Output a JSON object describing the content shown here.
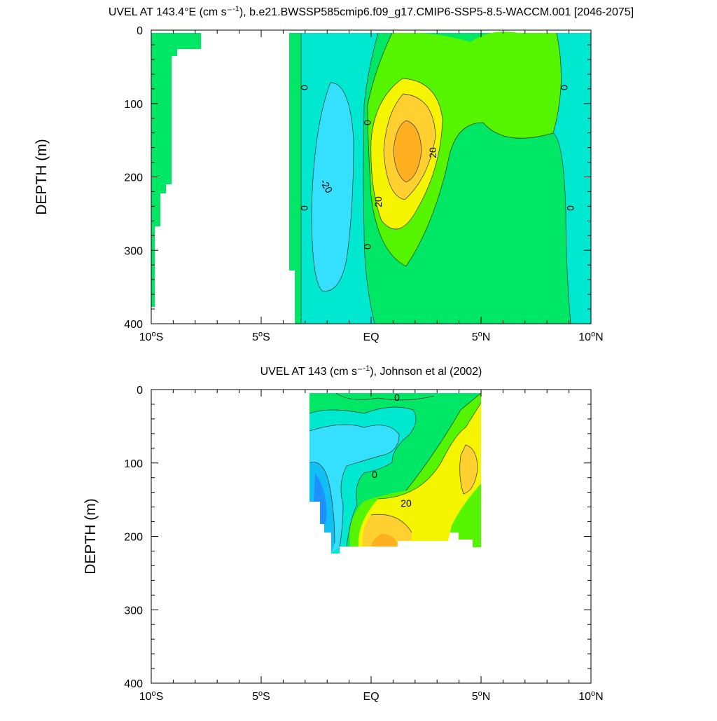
{
  "chart_data": [
    {
      "type": "contour",
      "title": "UVEL AT 143.4°E (cm s⁻¹), b.e21.BWSSP585cmip6.f09_g17.CMIP6-SSP5-8.5-WACCM.001 [2046-2075]",
      "ylabel": "DEPTH (m)",
      "xlabel": "",
      "xlim": [
        -10,
        10
      ],
      "ylim": [
        400,
        0
      ],
      "y_inverted": true,
      "x_ticks": [
        -10,
        -5,
        0,
        5,
        10
      ],
      "x_tick_labels": [
        "10°S",
        "5°S",
        "EQ",
        "5°N",
        "10°N"
      ],
      "y_ticks": [
        0,
        100,
        200,
        300,
        400
      ],
      "y_tick_labels": [
        "0",
        "100",
        "200",
        "300",
        "400"
      ],
      "contour_interval": 10,
      "contour_labels": [
        "0",
        "0",
        "0",
        "0",
        "0",
        "0",
        "-20",
        "20",
        "20"
      ],
      "levels": [
        {
          "lower": 0,
          "upper": 10,
          "color": "#00e665"
        },
        {
          "lower": -10,
          "upper": 0,
          "color": "#00e8d0"
        },
        {
          "lower": -20,
          "upper": -10,
          "color": "#35e0ff"
        },
        {
          "lower": 10,
          "upper": 20,
          "color": "#55f500"
        },
        {
          "lower": 20,
          "upper": 30,
          "color": "#f5f500"
        },
        {
          "lower": 30,
          "upper": 40,
          "color": "#ffd030"
        },
        {
          "lower": 40,
          "upper": 50,
          "color": "#ffb020"
        }
      ],
      "features": [
        {
          "name": "westward flow core",
          "lat": -1.9,
          "depth": 150,
          "value": -20
        },
        {
          "name": "eastward undercurrent core",
          "lat": 1.4,
          "depth": 165,
          "value": 45
        },
        {
          "name": "eastward surface flow",
          "lat": 4.5,
          "depth": 50,
          "value": 15
        }
      ]
    },
    {
      "type": "contour",
      "title": "UVEL AT 143 (cm s⁻¹), Johnson et al (2002)",
      "ylabel": "DEPTH (m)",
      "xlabel": "",
      "xlim": [
        -10,
        10
      ],
      "ylim": [
        400,
        0
      ],
      "y_inverted": true,
      "x_ticks": [
        -10,
        -5,
        0,
        5,
        10
      ],
      "x_tick_labels": [
        "10°S",
        "5°S",
        "EQ",
        "5°N",
        "10°N"
      ],
      "y_ticks": [
        0,
        100,
        200,
        300,
        400
      ],
      "y_tick_labels": [
        "0",
        "100",
        "200",
        "300",
        "400"
      ],
      "data_extent": {
        "lat": [
          -2.8,
          5.0
        ],
        "depth": [
          5,
          220
        ]
      },
      "contour_labels": [
        "0",
        "0",
        "20"
      ],
      "levels": [
        {
          "lower": 0,
          "upper": 10,
          "color": "#00e665"
        },
        {
          "lower": -10,
          "upper": 0,
          "color": "#00e8d0"
        },
        {
          "lower": -20,
          "upper": -10,
          "color": "#35e0ff"
        },
        {
          "lower": -30,
          "upper": -20,
          "color": "#10c0f5"
        },
        {
          "lower": -40,
          "upper": -30,
          "color": "#1e90ff"
        },
        {
          "lower": 10,
          "upper": 20,
          "color": "#55f500"
        },
        {
          "lower": 20,
          "upper": 30,
          "color": "#f5f500"
        },
        {
          "lower": 30,
          "upper": 40,
          "color": "#ffd030"
        },
        {
          "lower": 40,
          "upper": 50,
          "color": "#ffb020"
        }
      ],
      "features": [
        {
          "name": "westward flow core",
          "lat": -2.6,
          "depth": 170,
          "value": -35
        },
        {
          "name": "eastward undercurrent core",
          "lat": 0.2,
          "depth": 205,
          "value": 45
        },
        {
          "name": "eastward flow",
          "lat": 4.3,
          "depth": 90,
          "value": 30
        }
      ]
    }
  ]
}
